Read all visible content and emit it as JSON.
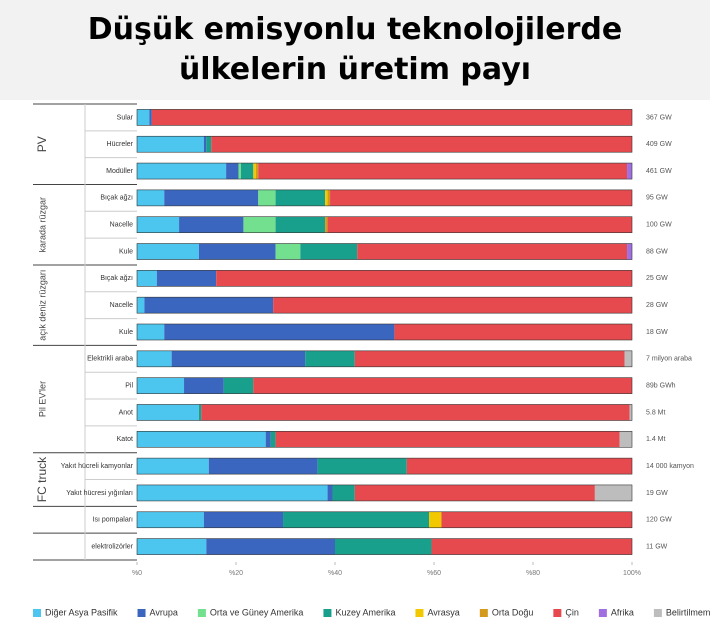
{
  "chart_data": {
    "type": "stacked-bar-horizontal",
    "title": "Düşük emisyonlu teknolojilerde ülkelerin üretim payı",
    "categories": [
      "Sular",
      "Hücreler",
      "Modüller",
      "Bıçak ağzı",
      "Nacelle",
      "Kule",
      "Bıçak ağzı",
      "Nacelle",
      "Kule",
      "Elektrikli araba",
      "Pil",
      "Anot",
      "Katot",
      "Yakıt hücreli kamyonlar",
      "Yakıt hücresi yığınları",
      "Isı pompaları",
      "elektrolizörler"
    ],
    "groups": [
      "PV",
      "PV",
      "PV",
      "karada rüzgar",
      "karada rüzgar",
      "karada rüzgar",
      "açık deniz rüzgarı",
      "açık deniz rüzgarı",
      "açık deniz rüzgarı",
      "Pil EV'ler",
      "Pil EV'ler",
      "Pil EV'ler",
      "Pil EV'ler",
      "FC truck",
      "FC truck",
      null,
      null
    ],
    "end_labels": [
      "367 GW",
      "409 GW",
      "461 GW",
      "95 GW",
      "100 GW",
      "88 GW",
      "25 GW",
      "28 GW",
      "18 GW",
      "7 milyon araba",
      "89b GWh",
      "5.8 Mt",
      "1.4 Mt",
      "14 000 kamyon",
      "19 GW",
      "120 GW",
      "11 GW"
    ],
    "xlim": [
      0,
      100
    ],
    "xticks": [
      {
        "value": 0,
        "label": "%0"
      },
      {
        "value": 20,
        "label": "%20"
      },
      {
        "value": 40,
        "label": "%40"
      },
      {
        "value": 60,
        "label": "%60"
      },
      {
        "value": 80,
        "label": "%80"
      },
      {
        "value": 100,
        "label": "100%"
      }
    ],
    "series": [
      {
        "name": "Diğer Asya Pasifik",
        "color": "#4cc6ee",
        "values": [
          2.5,
          13.5,
          18,
          5.5,
          8.5,
          12.5,
          4,
          1.5,
          5.5,
          7,
          9.5,
          12.5,
          26,
          14.5,
          38.5,
          13.5,
          14
        ]
      },
      {
        "name": "Avrupa",
        "color": "#3a66c0",
        "values": [
          0.5,
          0.5,
          2.5,
          19,
          13,
          15.5,
          12,
          26,
          46.5,
          27,
          8,
          0,
          1,
          22,
          1,
          16,
          26
        ]
      },
      {
        "name": "Orta ve Güney Amerika",
        "color": "#72e08e",
        "values": [
          0,
          0,
          0.5,
          3.5,
          6.5,
          5,
          0,
          0,
          0,
          0,
          0,
          0,
          0,
          0,
          0,
          0,
          0
        ]
      },
      {
        "name": "Kuzey Amerika",
        "color": "#18a08c",
        "values": [
          0,
          1,
          2.5,
          10,
          10,
          11.5,
          0,
          0,
          0,
          10,
          6,
          0.5,
          1,
          18,
          4.5,
          29.5,
          19.5
        ]
      },
      {
        "name": "Avrasya",
        "color": "#f2c800",
        "values": [
          0,
          0,
          0.5,
          0.5,
          0,
          0,
          0,
          0,
          0,
          0,
          0,
          0,
          0,
          0,
          0,
          2.5,
          0
        ]
      },
      {
        "name": "Orta Doğu",
        "color": "#d49a1c",
        "values": [
          0,
          0,
          0.5,
          0.5,
          0.5,
          0,
          0,
          0,
          0,
          0,
          0,
          0,
          0,
          0,
          0,
          0,
          0
        ]
      },
      {
        "name": "Çin",
        "color": "#e64a4e",
        "values": [
          97,
          85,
          74.5,
          61,
          61.5,
          54.5,
          84,
          72.5,
          48,
          54.5,
          76.5,
          86.5,
          69.5,
          45.5,
          48.5,
          38.5,
          40.5
        ]
      },
      {
        "name": "Afrika",
        "color": "#a070e0",
        "values": [
          0,
          0,
          1,
          0,
          0,
          1,
          0,
          0,
          0,
          0,
          0,
          0,
          0,
          0,
          0,
          0,
          0
        ]
      },
      {
        "name": "Belirtilmemiş",
        "color": "#bdbdbd",
        "values": [
          0,
          0,
          0,
          0,
          0,
          0,
          0,
          0,
          0,
          1.5,
          0,
          0.5,
          2.5,
          0,
          7.5,
          0,
          0
        ]
      }
    ]
  }
}
